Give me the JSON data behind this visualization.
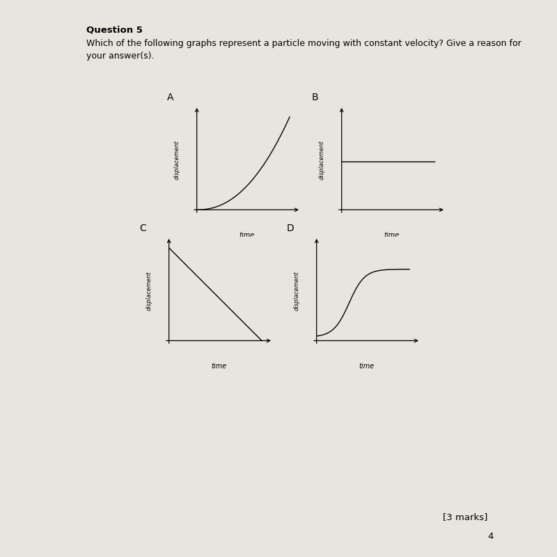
{
  "title": "Question 5",
  "question_text_line1": "Which of the following graphs represent a particle moving with constant velocity? Give a reason for",
  "question_text_line2": "your answer(s).",
  "bg_color": "#e8e4de",
  "marks_text": "[3 marks]",
  "page_num": "4",
  "graphs": [
    {
      "label": "A",
      "type": "exponential",
      "ylabel": "displacement",
      "xlabel": "time"
    },
    {
      "label": "B",
      "type": "flat",
      "ylabel": "displacement",
      "xlabel": "time"
    },
    {
      "label": "C",
      "type": "linear_decrease",
      "ylabel": "displacement",
      "xlabel": "time"
    },
    {
      "label": "D",
      "type": "sigmoid",
      "ylabel": "displacement",
      "xlabel": "time"
    }
  ]
}
